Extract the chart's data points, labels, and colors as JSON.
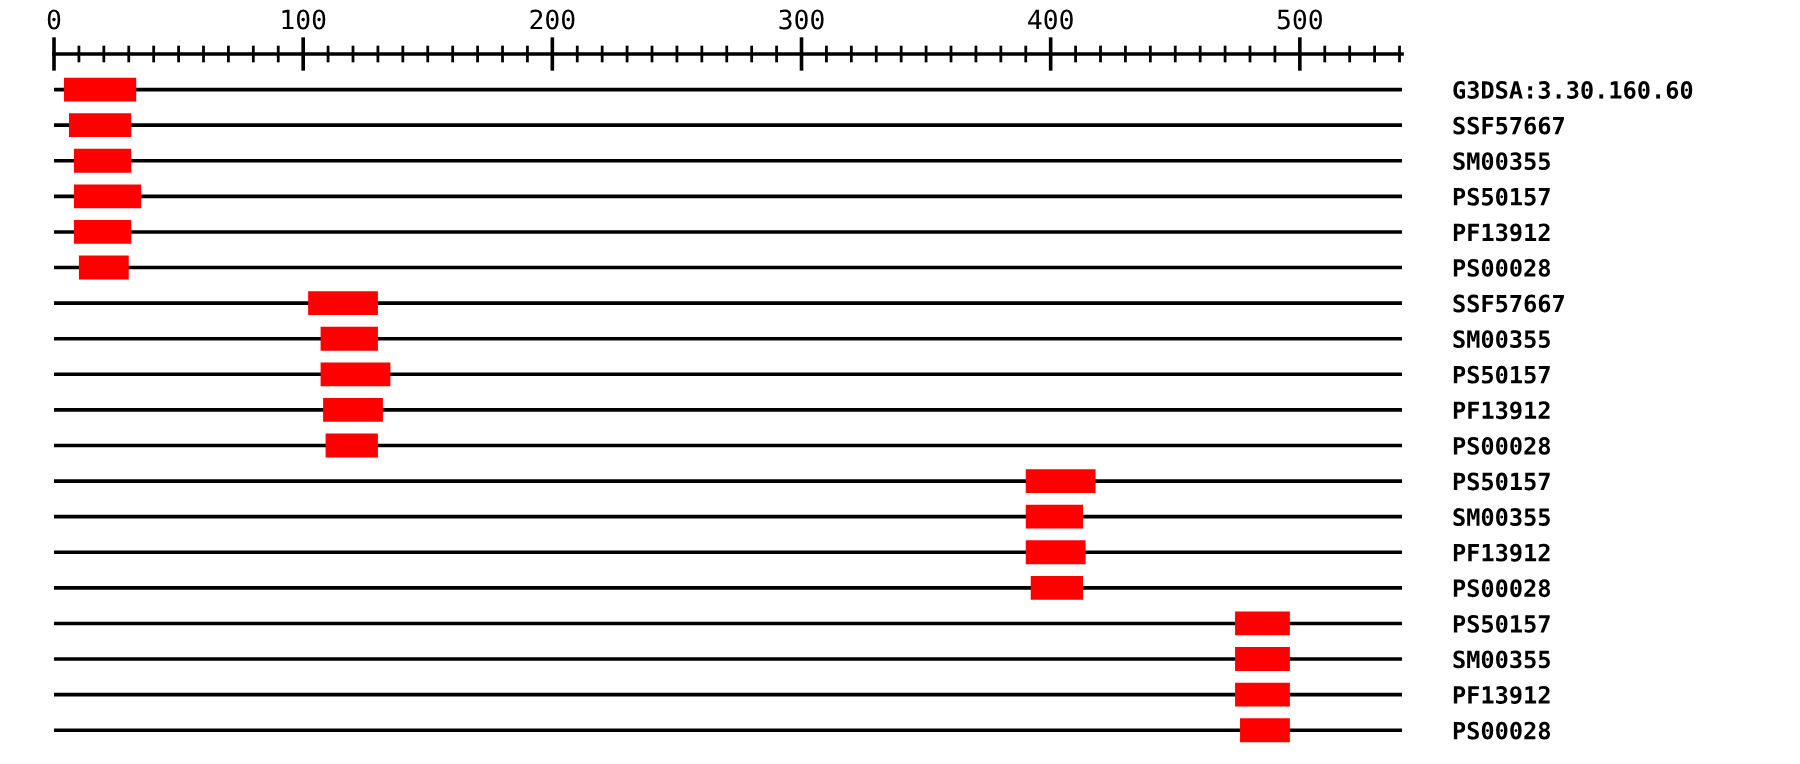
{
  "chart_data": {
    "type": "bar",
    "orientation": "horizontal",
    "color": "#ff0000",
    "grid": "y",
    "categories": [
      "G3DSA:3.30.160.60",
      "SSF57667",
      "SM00355",
      "PS50157",
      "PF13912",
      "PS00028",
      "SSF57667",
      "SM00355",
      "PS50157",
      "PF13912",
      "PS00028",
      "PS50157",
      "SM00355",
      "PF13912",
      "PS00028",
      "PS50157",
      "SM00355",
      "PF13912",
      "PS00028"
    ],
    "base": [
      4,
      6,
      8,
      8,
      8,
      10,
      102,
      107,
      107,
      108,
      109,
      390,
      390,
      390,
      392,
      474,
      474,
      474,
      476
    ],
    "values": [
      29,
      25,
      23,
      27,
      23,
      20,
      28,
      23,
      28,
      24,
      21,
      28,
      23,
      24,
      21,
      22,
      22,
      22,
      20
    ],
    "xlim": [
      0,
      541
    ],
    "xticks": [
      0,
      {
        "value": 10,
        "label": null
      },
      {
        "value": 20,
        "label": null
      },
      {
        "value": 30,
        "label": null
      },
      {
        "value": 40,
        "label": null
      },
      {
        "value": 50,
        "label": null
      },
      {
        "value": 60,
        "label": null
      },
      {
        "value": 70,
        "label": null
      },
      {
        "value": 80,
        "label": null
      },
      {
        "value": 90,
        "label": null
      },
      100,
      {
        "value": 110,
        "label": null
      },
      {
        "value": 120,
        "label": null
      },
      {
        "value": 130,
        "label": null
      },
      {
        "value": 140,
        "label": null
      },
      {
        "value": 150,
        "label": null
      },
      {
        "value": 160,
        "label": null
      },
      {
        "value": 170,
        "label": null
      },
      {
        "value": 180,
        "label": null
      },
      {
        "value": 190,
        "label": null
      },
      200,
      {
        "value": 210,
        "label": null
      },
      {
        "value": 220,
        "label": null
      },
      {
        "value": 230,
        "label": null
      },
      {
        "value": 240,
        "label": null
      },
      {
        "value": 250,
        "label": null
      },
      {
        "value": 260,
        "label": null
      },
      {
        "value": 270,
        "label": null
      },
      {
        "value": 280,
        "label": null
      },
      {
        "value": 290,
        "label": null
      },
      300,
      {
        "value": 310,
        "label": null
      },
      {
        "value": 320,
        "label": null
      },
      {
        "value": 330,
        "label": null
      },
      {
        "value": 340,
        "label": null
      },
      {
        "value": 350,
        "label": null
      },
      {
        "value": 360,
        "label": null
      },
      {
        "value": 370,
        "label": null
      },
      {
        "value": 380,
        "label": null
      },
      {
        "value": 390,
        "label": null
      },
      400,
      {
        "value": 410,
        "label": null
      },
      {
        "value": 420,
        "label": null
      },
      {
        "value": 430,
        "label": null
      },
      {
        "value": 440,
        "label": null
      },
      {
        "value": 450,
        "label": null
      },
      {
        "value": 460,
        "label": null
      },
      {
        "value": 470,
        "label": null
      },
      {
        "value": 480,
        "label": null
      },
      {
        "value": 490,
        "label": null
      },
      500,
      {
        "value": 510,
        "label": null
      },
      {
        "value": 520,
        "label": null
      },
      {
        "value": 530,
        "label": null
      },
      {
        "value": 540,
        "label": null
      }
    ]
  }
}
